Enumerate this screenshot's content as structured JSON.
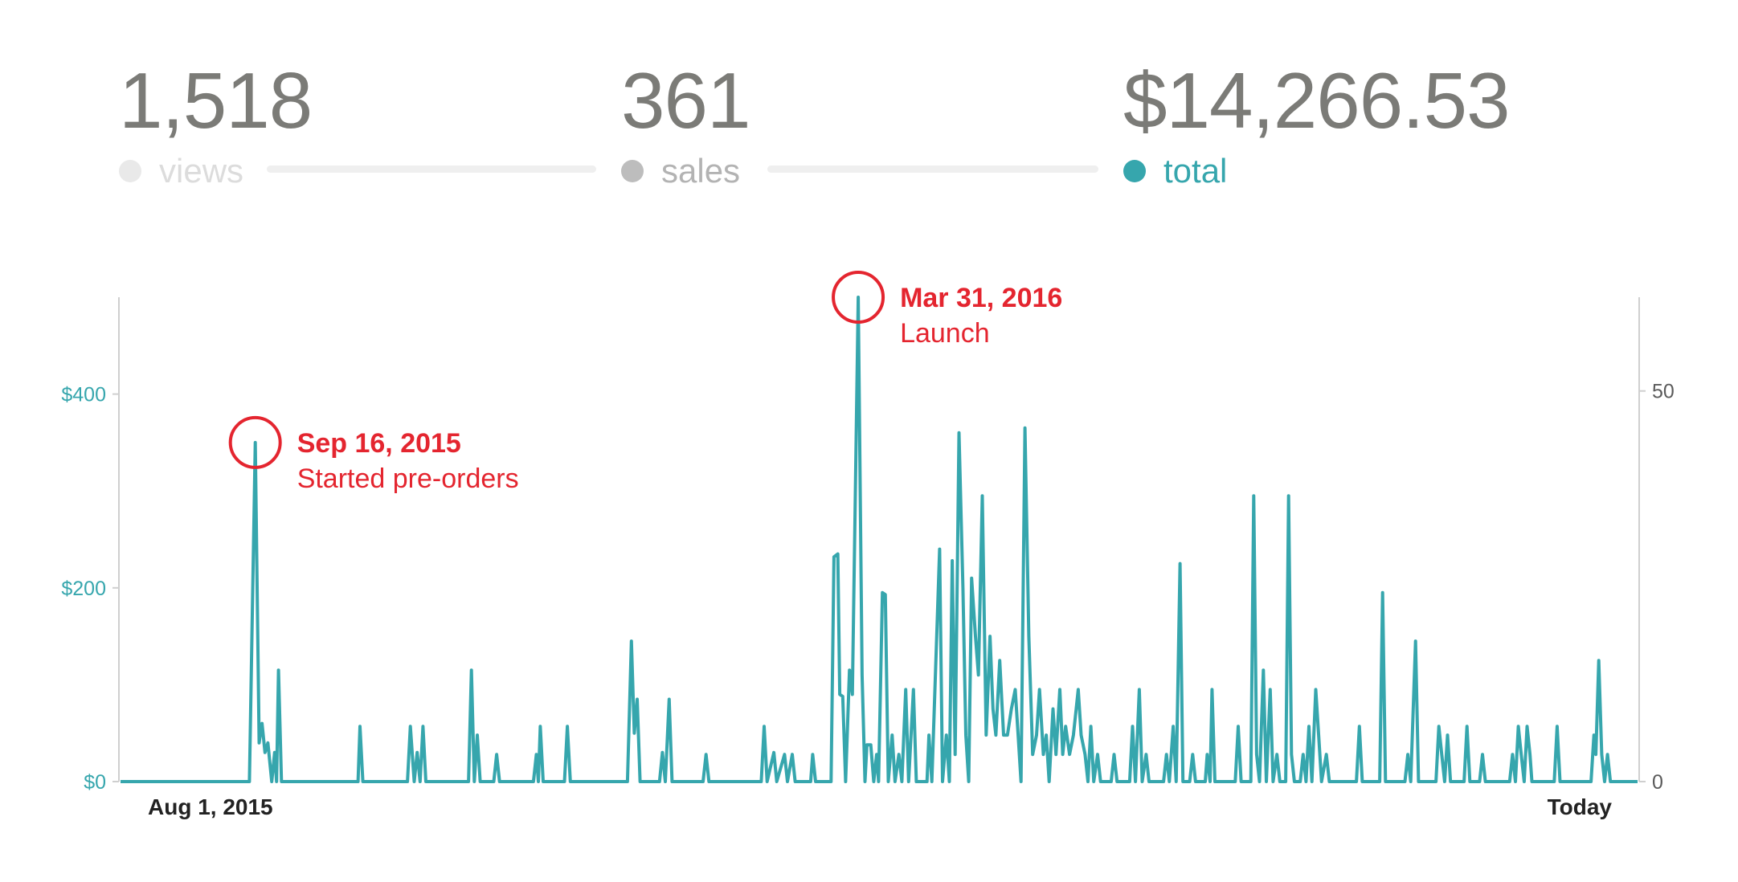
{
  "stats": {
    "views": {
      "value": "1,518",
      "label": "views"
    },
    "sales": {
      "value": "361",
      "label": "sales"
    },
    "total": {
      "value": "$14,266.53",
      "label": "total"
    }
  },
  "colors": {
    "total": "#36a6ad",
    "views_inactive": "#e9e9e9",
    "sales_inactive": "#bdbdbd",
    "annotation": "#e4252f",
    "axis_text": "#5a5a5a"
  },
  "chart_data": {
    "type": "line",
    "x_start_label": "Aug 1, 2015",
    "x_end_label": "Today",
    "y_left": {
      "ticks": [
        0,
        200,
        400
      ],
      "tick_labels": [
        "$0",
        "$200",
        "$400"
      ],
      "range": [
        0,
        500
      ]
    },
    "y_right": {
      "ticks": [
        0,
        50
      ],
      "tick_labels": [
        "0",
        "50"
      ],
      "range": [
        0,
        62
      ]
    },
    "series": [
      {
        "name": "total",
        "axis": "left",
        "points": [
          [
            0,
            0
          ],
          [
            133,
            0
          ],
          [
            139,
            350
          ],
          [
            143,
            40
          ],
          [
            146,
            60
          ],
          [
            149,
            30
          ],
          [
            152,
            40
          ],
          [
            156,
            0
          ],
          [
            159,
            30
          ],
          [
            161,
            0
          ],
          [
            163,
            115
          ],
          [
            166,
            0
          ],
          [
            245,
            0
          ],
          [
            247,
            57
          ],
          [
            250,
            0
          ],
          [
            296,
            0
          ],
          [
            299,
            57
          ],
          [
            303,
            0
          ],
          [
            306,
            30
          ],
          [
            309,
            0
          ],
          [
            312,
            57
          ],
          [
            315,
            0
          ],
          [
            359,
            0
          ],
          [
            362,
            115
          ],
          [
            365,
            0
          ],
          [
            368,
            48
          ],
          [
            371,
            0
          ],
          [
            385,
            0
          ],
          [
            388,
            28
          ],
          [
            391,
            0
          ],
          [
            426,
            0
          ],
          [
            429,
            28
          ],
          [
            431,
            0
          ],
          [
            433,
            57
          ],
          [
            436,
            0
          ],
          [
            458,
            0
          ],
          [
            461,
            57
          ],
          [
            464,
            0
          ],
          [
            523,
            0
          ],
          [
            527,
            145
          ],
          [
            530,
            50
          ],
          [
            533,
            85
          ],
          [
            536,
            0
          ],
          [
            556,
            0
          ],
          [
            559,
            30
          ],
          [
            562,
            0
          ],
          [
            566,
            85
          ],
          [
            569,
            0
          ],
          [
            601,
            0
          ],
          [
            604,
            28
          ],
          [
            607,
            0
          ],
          [
            661,
            0
          ],
          [
            664,
            57
          ],
          [
            667,
            0
          ],
          [
            674,
            30
          ],
          [
            677,
            0
          ],
          [
            685,
            28
          ],
          [
            688,
            0
          ],
          [
            693,
            28
          ],
          [
            696,
            0
          ],
          [
            712,
            0
          ],
          [
            714,
            28
          ],
          [
            717,
            0
          ],
          [
            733,
            0
          ],
          [
            736,
            232
          ],
          [
            740,
            235
          ],
          [
            742,
            90
          ],
          [
            745,
            88
          ],
          [
            748,
            0
          ],
          [
            752,
            115
          ],
          [
            755,
            90
          ],
          [
            761,
            500
          ],
          [
            765,
            110
          ],
          [
            768,
            0
          ],
          [
            770,
            38
          ],
          [
            774,
            38
          ],
          [
            777,
            0
          ],
          [
            780,
            28
          ],
          [
            782,
            0
          ],
          [
            786,
            195
          ],
          [
            789,
            193
          ],
          [
            792,
            0
          ],
          [
            796,
            48
          ],
          [
            799,
            0
          ],
          [
            803,
            28
          ],
          [
            806,
            0
          ],
          [
            810,
            95
          ],
          [
            813,
            0
          ],
          [
            818,
            95
          ],
          [
            821,
            0
          ],
          [
            832,
            0
          ],
          [
            834,
            48
          ],
          [
            837,
            0
          ],
          [
            845,
            240
          ],
          [
            848,
            0
          ],
          [
            852,
            48
          ],
          [
            855,
            0
          ],
          [
            858,
            228
          ],
          [
            861,
            28
          ],
          [
            865,
            360
          ],
          [
            869,
            200
          ],
          [
            872,
            48
          ],
          [
            875,
            0
          ],
          [
            878,
            210
          ],
          [
            882,
            150
          ],
          [
            885,
            110
          ],
          [
            889,
            295
          ],
          [
            893,
            48
          ],
          [
            897,
            150
          ],
          [
            900,
            75
          ],
          [
            903,
            48
          ],
          [
            907,
            125
          ],
          [
            911,
            48
          ],
          [
            915,
            48
          ],
          [
            919,
            75
          ],
          [
            923,
            95
          ],
          [
            926,
            48
          ],
          [
            929,
            0
          ],
          [
            933,
            365
          ],
          [
            937,
            150
          ],
          [
            941,
            28
          ],
          [
            945,
            48
          ],
          [
            948,
            95
          ],
          [
            952,
            28
          ],
          [
            955,
            48
          ],
          [
            958,
            0
          ],
          [
            962,
            75
          ],
          [
            965,
            28
          ],
          [
            969,
            95
          ],
          [
            972,
            28
          ],
          [
            975,
            57
          ],
          [
            979,
            28
          ],
          [
            983,
            48
          ],
          [
            988,
            95
          ],
          [
            991,
            48
          ],
          [
            995,
            28
          ],
          [
            998,
            0
          ],
          [
            1001,
            57
          ],
          [
            1004,
            0
          ],
          [
            1008,
            28
          ],
          [
            1011,
            0
          ],
          [
            1022,
            0
          ],
          [
            1025,
            28
          ],
          [
            1028,
            0
          ],
          [
            1041,
            0
          ],
          [
            1044,
            57
          ],
          [
            1047,
            0
          ],
          [
            1051,
            95
          ],
          [
            1054,
            0
          ],
          [
            1058,
            28
          ],
          [
            1061,
            0
          ],
          [
            1076,
            0
          ],
          [
            1079,
            28
          ],
          [
            1082,
            0
          ],
          [
            1086,
            57
          ],
          [
            1089,
            0
          ],
          [
            1093,
            225
          ],
          [
            1096,
            0
          ],
          [
            1103,
            0
          ],
          [
            1106,
            28
          ],
          [
            1109,
            0
          ],
          [
            1119,
            0
          ],
          [
            1121,
            28
          ],
          [
            1124,
            0
          ],
          [
            1126,
            95
          ],
          [
            1129,
            0
          ],
          [
            1150,
            0
          ],
          [
            1153,
            57
          ],
          [
            1156,
            0
          ],
          [
            1166,
            0
          ],
          [
            1169,
            295
          ],
          [
            1172,
            28
          ],
          [
            1175,
            0
          ],
          [
            1179,
            115
          ],
          [
            1182,
            0
          ],
          [
            1186,
            95
          ],
          [
            1189,
            0
          ],
          [
            1193,
            28
          ],
          [
            1196,
            0
          ],
          [
            1202,
            0
          ],
          [
            1205,
            295
          ],
          [
            1208,
            28
          ],
          [
            1211,
            0
          ],
          [
            1217,
            0
          ],
          [
            1220,
            28
          ],
          [
            1223,
            0
          ],
          [
            1226,
            57
          ],
          [
            1229,
            0
          ],
          [
            1233,
            95
          ],
          [
            1236,
            48
          ],
          [
            1239,
            0
          ],
          [
            1244,
            28
          ],
          [
            1247,
            0
          ],
          [
            1275,
            0
          ],
          [
            1278,
            57
          ],
          [
            1281,
            0
          ],
          [
            1299,
            0
          ],
          [
            1302,
            195
          ],
          [
            1305,
            0
          ],
          [
            1325,
            0
          ],
          [
            1328,
            28
          ],
          [
            1331,
            0
          ],
          [
            1336,
            145
          ],
          [
            1339,
            0
          ],
          [
            1357,
            0
          ],
          [
            1360,
            57
          ],
          [
            1363,
            28
          ],
          [
            1366,
            0
          ],
          [
            1369,
            48
          ],
          [
            1372,
            0
          ],
          [
            1386,
            0
          ],
          [
            1389,
            57
          ],
          [
            1392,
            0
          ],
          [
            1402,
            0
          ],
          [
            1405,
            28
          ],
          [
            1408,
            0
          ],
          [
            1433,
            0
          ],
          [
            1436,
            28
          ],
          [
            1439,
            0
          ],
          [
            1442,
            57
          ],
          [
            1445,
            28
          ],
          [
            1448,
            0
          ],
          [
            1451,
            57
          ],
          [
            1454,
            28
          ],
          [
            1456,
            0
          ],
          [
            1479,
            0
          ],
          [
            1482,
            57
          ],
          [
            1485,
            0
          ],
          [
            1517,
            0
          ],
          [
            1520,
            48
          ],
          [
            1522,
            28
          ],
          [
            1525,
            125
          ],
          [
            1528,
            28
          ],
          [
            1531,
            0
          ],
          [
            1534,
            28
          ],
          [
            1537,
            0
          ],
          [
            1565,
            0
          ]
        ]
      }
    ],
    "annotations": [
      {
        "date": "Sep 16, 2015",
        "text": "Started pre-orders",
        "x": 139,
        "y": 350
      },
      {
        "date": "Mar 31, 2016",
        "text": "Launch",
        "x": 761,
        "y": 500
      }
    ],
    "x_domain": [
      0,
      1565
    ],
    "grid": false,
    "legend_placement": "top"
  }
}
